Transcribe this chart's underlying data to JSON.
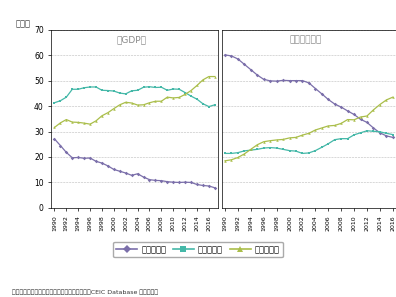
{
  "gdp_years": [
    1990,
    1991,
    1992,
    1993,
    1994,
    1995,
    1996,
    1997,
    1998,
    1999,
    2000,
    2001,
    2002,
    2003,
    2004,
    2005,
    2006,
    2007,
    2008,
    2009,
    2010,
    2011,
    2012,
    2013,
    2014,
    2015,
    2016,
    2017
  ],
  "gdp_primary": [
    27.1,
    24.5,
    21.8,
    19.7,
    19.8,
    19.5,
    19.6,
    18.3,
    17.6,
    16.5,
    15.1,
    14.4,
    13.7,
    12.8,
    13.4,
    12.1,
    11.1,
    10.8,
    10.7,
    10.3,
    10.1,
    10.0,
    10.1,
    10.0,
    9.2,
    8.8,
    8.6,
    7.9
  ],
  "gdp_secondary": [
    41.3,
    42.1,
    43.5,
    46.6,
    46.6,
    47.2,
    47.5,
    47.5,
    46.2,
    46.1,
    45.9,
    45.1,
    44.8,
    46.0,
    46.2,
    47.4,
    47.6,
    47.3,
    47.4,
    46.2,
    46.7,
    46.6,
    45.3,
    43.9,
    42.7,
    40.9,
    39.8,
    40.5
  ],
  "gdp_tertiary": [
    31.6,
    33.4,
    34.7,
    33.7,
    33.6,
    33.3,
    32.9,
    34.2,
    36.2,
    37.4,
    39.0,
    40.5,
    41.5,
    41.2,
    40.4,
    40.5,
    41.3,
    41.9,
    41.9,
    43.5,
    43.2,
    43.4,
    44.6,
    46.1,
    48.1,
    50.3,
    51.6,
    51.6
  ],
  "emp_years": [
    1990,
    1991,
    1992,
    1993,
    1994,
    1995,
    1996,
    1997,
    1998,
    1999,
    2000,
    2001,
    2002,
    2003,
    2004,
    2005,
    2006,
    2007,
    2008,
    2009,
    2010,
    2011,
    2012,
    2013,
    2014,
    2015,
    2016
  ],
  "emp_primary": [
    60.1,
    59.7,
    58.5,
    56.4,
    54.3,
    52.2,
    50.5,
    49.9,
    49.8,
    50.1,
    50.0,
    50.0,
    50.0,
    49.1,
    46.9,
    44.8,
    42.6,
    40.8,
    39.6,
    38.1,
    36.7,
    34.8,
    33.6,
    31.4,
    29.5,
    28.3,
    27.7
  ],
  "emp_secondary": [
    21.4,
    21.4,
    21.7,
    22.4,
    22.7,
    23.0,
    23.5,
    23.7,
    23.5,
    23.0,
    22.5,
    22.3,
    21.4,
    21.6,
    22.5,
    23.8,
    25.2,
    26.8,
    27.2,
    27.2,
    28.7,
    29.5,
    30.3,
    30.1,
    29.9,
    29.3,
    28.8
  ],
  "emp_tertiary": [
    18.5,
    18.9,
    19.8,
    21.2,
    23.0,
    24.8,
    26.0,
    26.4,
    26.7,
    26.9,
    27.5,
    27.7,
    28.6,
    29.3,
    30.6,
    31.4,
    32.2,
    32.4,
    33.2,
    34.7,
    34.6,
    35.7,
    36.1,
    38.5,
    40.6,
    42.4,
    43.5
  ],
  "color_primary": "#7b6faa",
  "color_secondary": "#45b8a8",
  "color_tertiary": "#aabe4a",
  "ylim": [
    0,
    70
  ],
  "yticks": [
    0,
    10,
    20,
    30,
    40,
    50,
    60,
    70
  ],
  "title_gdp": "（GDP）",
  "title_emp": "（就業人員）",
  "pct_label": "（％）",
  "source": "資料：中国国家統計局、人力資源社会保障部、CEIC Database から作成。",
  "legend_labels": [
    "第一次産業",
    "第二次産業",
    "第三次産業"
  ],
  "bg_color": "#ffffff"
}
